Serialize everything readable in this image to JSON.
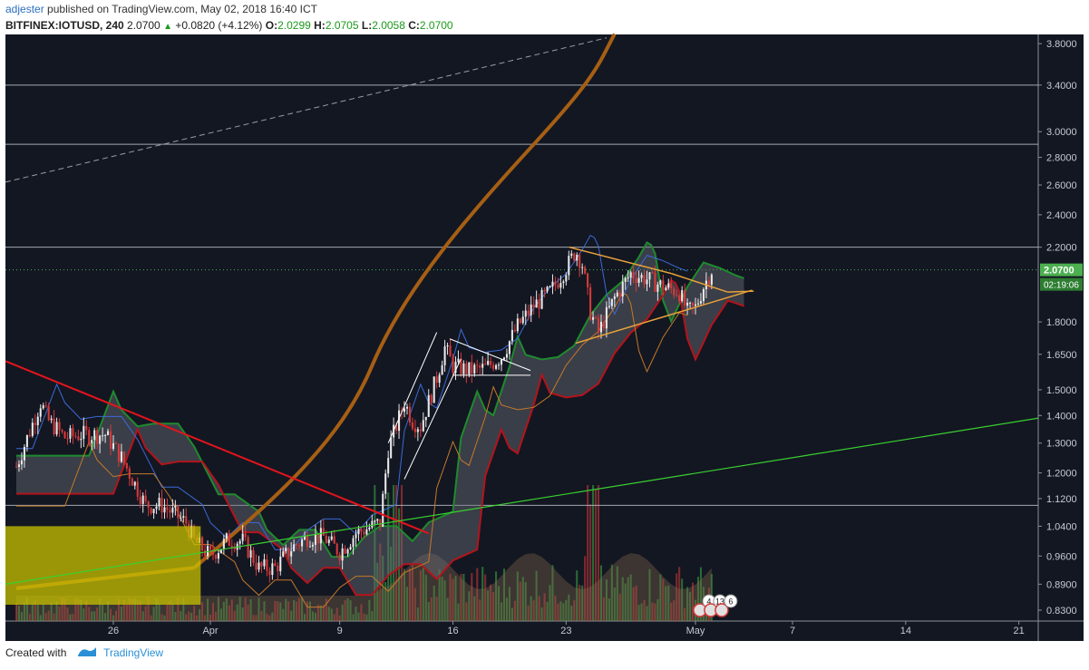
{
  "header": {
    "author": "adjester",
    "published_text": "published on TradingView.com, May 02, 2018 16:40 ICT",
    "symbol": "BITFINEX:IOTUSD, 240",
    "last": "2.0700",
    "change": "+0.0820 (+4.12%)",
    "o_label": "O:",
    "o_value": "2.0299",
    "h_label": "H:",
    "h_value": "2.0705",
    "l_label": "L:",
    "l_value": "2.0058",
    "c_label": "C:",
    "c_value": "2.0700"
  },
  "footer": {
    "created_with": "Created with",
    "brand": "TradingView"
  },
  "colors": {
    "background": "#131722",
    "up": "#3cb043",
    "down": "#d63a3a",
    "red_trend": "#e3141c",
    "green_trend": "#39d12f",
    "orange_ma": "#a65f14",
    "triangle": "#e8a13a",
    "cloud_green": "#1f8a2e",
    "cloud_red": "#b3141c",
    "blue_line": "#3a6ad6",
    "yellow_box": "#c8c200",
    "price_tag": "#4caf50"
  },
  "chart_data": {
    "type": "candlestick",
    "title": "BITFINEX:IOTUSD, 240",
    "y_scale": "log",
    "ylim": [
      0.8,
      3.9
    ],
    "y_ticks": [
      "3.8000",
      "3.4000",
      "3.0000",
      "2.8000",
      "2.6000",
      "2.4000",
      "2.2000",
      "1.8000",
      "1.6500",
      "1.5000",
      "1.4000",
      "1.3000",
      "1.2000",
      "1.1200",
      "1.0400",
      "0.9600",
      "0.8900",
      "0.8300"
    ],
    "y_tick_values": [
      3.8,
      3.4,
      3.0,
      2.8,
      2.6,
      2.4,
      2.2,
      1.8,
      1.65,
      1.5,
      1.4,
      1.3,
      1.2,
      1.12,
      1.04,
      0.96,
      0.89,
      0.83
    ],
    "horizontal_levels": [
      3.4,
      2.9,
      2.2,
      1.1
    ],
    "price_label": "2.0700",
    "countdown_label": "02:19:06",
    "x_ticks": [
      "26",
      "Apr",
      "9",
      "16",
      "23",
      "May",
      "7",
      "14",
      "21"
    ],
    "x_tick_days": [
      26,
      32,
      40,
      47,
      54,
      62,
      68,
      75,
      82
    ],
    "x_range_days": [
      20,
      88
    ],
    "series_close_anchors": {
      "day": [
        20,
        21.5,
        22,
        23,
        24,
        25.5,
        26.5,
        28,
        29,
        30.5,
        31,
        32,
        33,
        34,
        35,
        36,
        37,
        38,
        39,
        40,
        41,
        42.5,
        43,
        44,
        44.5,
        45,
        46,
        46.5,
        47,
        48,
        49,
        50,
        51,
        52,
        53,
        54,
        54.6,
        55,
        55.5,
        56,
        57,
        58,
        59,
        60,
        61,
        61.5,
        62,
        62.5,
        63
      ],
      "close": [
        1.22,
        1.45,
        1.38,
        1.32,
        1.33,
        1.33,
        1.25,
        1.1,
        1.1,
        1.05,
        1.0,
        0.96,
        1.0,
        1.0,
        0.93,
        0.93,
        0.98,
        1.01,
        1.01,
        0.97,
        1.02,
        1.05,
        1.28,
        1.45,
        1.38,
        1.36,
        1.55,
        1.68,
        1.6,
        1.58,
        1.59,
        1.64,
        1.78,
        1.88,
        1.95,
        2.08,
        2.18,
        2.1,
        1.85,
        1.75,
        1.92,
        2.05,
        2.02,
        1.98,
        1.95,
        1.85,
        1.87,
        1.98,
        2.07
      ]
    },
    "events": [
      "4",
      "13",
      "6"
    ]
  }
}
